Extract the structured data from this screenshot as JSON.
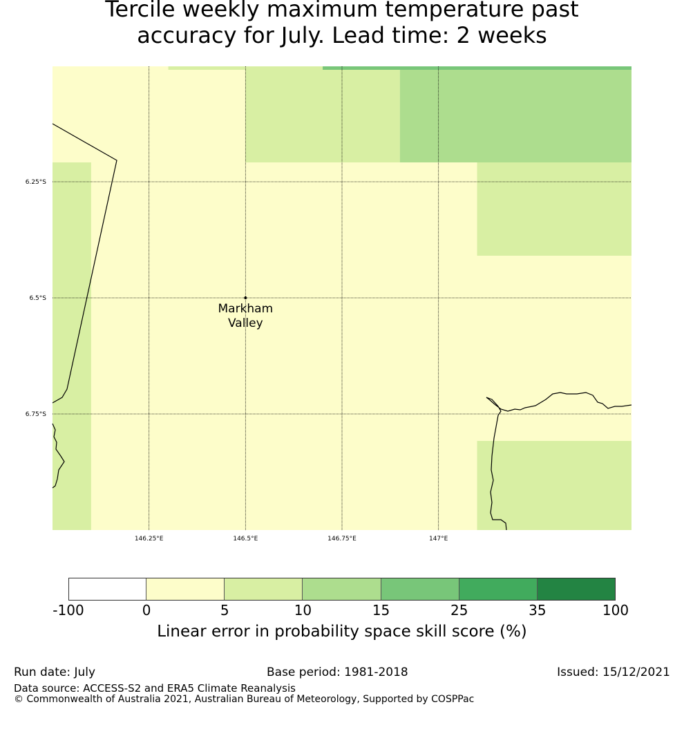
{
  "title": {
    "line1": "Tercile weekly maximum temperature past",
    "line2": "accuracy for July. Lead time: 2 weeks"
  },
  "map": {
    "lon_range": [
      146.0,
      147.5
    ],
    "lat_range": [
      -6.0,
      -7.0
    ],
    "lon_ticks": [
      {
        "value": 146.25,
        "label": "146.25°E"
      },
      {
        "value": 146.5,
        "label": "146.5°E"
      },
      {
        "value": 146.75,
        "label": "146.75°E"
      },
      {
        "value": 147.0,
        "label": "147°E"
      }
    ],
    "lat_ticks": [
      {
        "value": -6.25,
        "label": "6.25°S"
      },
      {
        "value": -6.5,
        "label": "6.5°S"
      },
      {
        "value": -6.75,
        "label": "6.75°S"
      }
    ],
    "location": {
      "name_line1": "Markham",
      "name_line2": "Valley",
      "lon": 146.5,
      "lat": -6.5
    },
    "grid_cells": [
      {
        "lon0": 146.0,
        "lon1": 147.5,
        "lat0": -6.0,
        "lat1": -7.0,
        "color": "#fdfdca"
      },
      {
        "lon0": 146.3,
        "lon1": 147.5,
        "lat0": -6.0,
        "lat1": -6.007,
        "color": "#d8efa3"
      },
      {
        "lon0": 146.5,
        "lon1": 146.9,
        "lat0": -6.007,
        "lat1": -6.2,
        "color": "#d8efa3"
      },
      {
        "lon0": 146.9,
        "lon1": 147.5,
        "lat0": -6.007,
        "lat1": -6.2,
        "color": "#addd8e"
      },
      {
        "lon0": 146.7,
        "lon1": 147.5,
        "lat0": -6.0,
        "lat1": -6.007,
        "color": "#78c679"
      },
      {
        "lon0": 146.0,
        "lon1": 146.1,
        "lat0": -6.2,
        "lat1": -7.0,
        "color": "#d8efa3"
      },
      {
        "lon0": 147.1,
        "lon1": 147.5,
        "lat0": -6.2,
        "lat1": -6.4,
        "color": "#d8efa3"
      },
      {
        "lon0": 147.1,
        "lon1": 147.5,
        "lat0": -6.8,
        "lat1": -7.0,
        "color": "#d8efa3"
      }
    ]
  },
  "colorbar": {
    "ticks": [
      "-100",
      "0",
      "5",
      "10",
      "15",
      "25",
      "35",
      "100"
    ],
    "colors": [
      "#ffffff",
      "#fdfdca",
      "#d8efa3",
      "#addd8e",
      "#78c679",
      "#41ab5d",
      "#238443"
    ],
    "label": "Linear error in probability space skill score (%)"
  },
  "footer": {
    "run_date": "Run date: July",
    "base_period": "Base period: 1981-2018",
    "issued": "Issued: 15/12/2021",
    "data_source": "Data source: ACCESS-S2 and ERA5 Climate Reanalysis",
    "copyright": "© Commonwealth of Australia 2021, Australian Bureau of Meteorology, Supported by COSPPac"
  }
}
